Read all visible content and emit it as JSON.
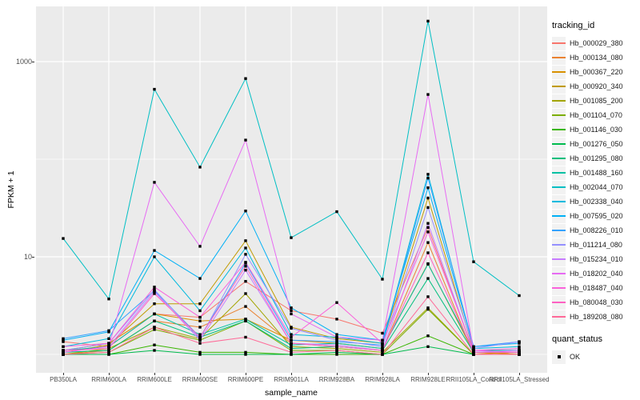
{
  "chart_data": {
    "type": "line",
    "title": "",
    "xlabel": "sample_name",
    "ylabel": "FPKM + 1",
    "y_scale": "log10",
    "ylim": [
      0.65,
      3700
    ],
    "y_major_breaks": [
      10,
      1000
    ],
    "y_minor_breaks": [
      1,
      100
    ],
    "y_tick_labels": [
      "10",
      "1000"
    ],
    "grid": "on",
    "legend_position": "right",
    "point_marker": "black-square",
    "colors": {
      "panel_bg": "#EBEBEB",
      "grid": "#FFFFFF",
      "point": "#000000",
      "tick_text": "#4D4D4D",
      "axis_title_text": "#000000"
    },
    "legend_title": "tracking_id",
    "shape_legend": {
      "title": "quant_status",
      "items": [
        {
          "label": "OK",
          "marker": "black-square"
        }
      ]
    },
    "categories": [
      "PB350LA",
      "RRIM600LA",
      "RRIM600LE",
      "RRIM600SE",
      "RRIM600PE",
      "RRIM901LA",
      "RRIM928BA",
      "RRIM928LA",
      "RRIM928LE",
      "RRII105LA_Control",
      "RRII105LA_Stressed"
    ],
    "series": [
      {
        "name": "Hb_000029_380",
        "color": "#F8766D",
        "values": [
          1.35,
          1.2,
          2.6,
          2.4,
          5.6,
          2.8,
          2.3,
          1.65,
          20,
          1.05,
          1.0
        ]
      },
      {
        "name": "Hb_000134_080",
        "color": "#EA8331",
        "values": [
          1.0,
          1.1,
          2.2,
          1.9,
          3.1,
          1.3,
          1.2,
          1.1,
          14,
          1.0,
          1.05
        ]
      },
      {
        "name": "Hb_000367_220",
        "color": "#D89000",
        "values": [
          1.1,
          1.3,
          2.6,
          2.2,
          2.3,
          1.4,
          1.3,
          1.15,
          8.5,
          1.05,
          1.0
        ]
      },
      {
        "name": "Hb_000920_340",
        "color": "#C09B00",
        "values": [
          1.05,
          1.25,
          3.3,
          3.3,
          14.6,
          1.9,
          1.45,
          1.3,
          40,
          1.1,
          1.1
        ]
      },
      {
        "name": "Hb_001085_200",
        "color": "#A3A500",
        "values": [
          1.0,
          1.15,
          1.9,
          1.45,
          4.2,
          1.2,
          1.15,
          1.05,
          3.0,
          1.0,
          1.0
        ]
      },
      {
        "name": "Hb_001104_070",
        "color": "#7CAE00",
        "values": [
          1.0,
          1.05,
          1.8,
          1.4,
          2.2,
          1.1,
          1.1,
          1.0,
          2.9,
          1.0,
          1.0
        ]
      },
      {
        "name": "Hb_001146_030",
        "color": "#39B600",
        "values": [
          1.0,
          1.0,
          1.25,
          1.05,
          1.05,
          1.0,
          1.0,
          1.0,
          1.55,
          1.0,
          1.0
        ]
      },
      {
        "name": "Hb_001276_050",
        "color": "#00BB4E",
        "values": [
          1.0,
          1.0,
          1.1,
          1.0,
          1.0,
          1.0,
          1.05,
          1.0,
          1.2,
          1.0,
          1.0
        ]
      },
      {
        "name": "Hb_001295_080",
        "color": "#00BF7D",
        "values": [
          1.05,
          1.1,
          2.2,
          1.5,
          2.2,
          1.15,
          1.2,
          1.1,
          6.0,
          1.05,
          1.05
        ]
      },
      {
        "name": "Hb_001488_160",
        "color": "#00C1A3",
        "values": [
          1.1,
          1.2,
          2.6,
          1.6,
          2.3,
          1.25,
          1.3,
          1.15,
          8.4,
          1.1,
          1.1
        ]
      },
      {
        "name": "Hb_002044_070",
        "color": "#00BFC4",
        "values": [
          15.4,
          3.7,
          520,
          83,
          670,
          15.7,
          29,
          5.9,
          2600,
          8.9,
          4.0
        ]
      },
      {
        "name": "Hb_002338_040",
        "color": "#00BADE",
        "values": [
          1.2,
          1.45,
          10,
          2.8,
          12.3,
          1.6,
          1.5,
          1.3,
          70,
          1.15,
          1.2
        ]
      },
      {
        "name": "Hb_007595_020",
        "color": "#00B0F6",
        "values": [
          1.4,
          1.7,
          11.6,
          6.0,
          29.5,
          3.0,
          1.6,
          1.4,
          51,
          1.2,
          1.3
        ]
      },
      {
        "name": "Hb_008226_010",
        "color": "#35A2FF",
        "values": [
          1.45,
          1.75,
          4.5,
          1.5,
          8.6,
          1.4,
          1.35,
          1.25,
          64,
          1.2,
          1.35
        ]
      },
      {
        "name": "Hb_011214_080",
        "color": "#9590FF",
        "values": [
          1.1,
          1.3,
          4.6,
          1.45,
          10.6,
          1.85,
          1.4,
          1.2,
          32,
          1.15,
          1.35
        ]
      },
      {
        "name": "Hb_015234_010",
        "color": "#C77CFF",
        "values": [
          1.05,
          1.2,
          4.4,
          1.4,
          7.3,
          1.3,
          1.25,
          1.1,
          22,
          1.05,
          1.1
        ]
      },
      {
        "name": "Hb_018202_040",
        "color": "#E76BF3",
        "values": [
          1.05,
          1.2,
          58,
          12.8,
          157,
          2.6,
          1.5,
          1.4,
          460,
          1.1,
          1.05
        ]
      },
      {
        "name": "Hb_018487_040",
        "color": "#FA62DB",
        "values": [
          1.2,
          1.3,
          4.9,
          2.4,
          8.8,
          1.5,
          3.4,
          1.3,
          18,
          1.1,
          1.15
        ]
      },
      {
        "name": "Hb_080048_030",
        "color": "#FF61C3",
        "values": [
          1.1,
          1.15,
          4.2,
          1.5,
          8.0,
          1.3,
          1.2,
          1.1,
          11,
          1.05,
          1.05
        ]
      },
      {
        "name": "Hb_189208_080",
        "color": "#FF6A98",
        "values": [
          1.0,
          1.05,
          1.9,
          1.3,
          1.5,
          1.05,
          1.1,
          1.0,
          3.9,
          1.0,
          1.0
        ]
      }
    ]
  }
}
